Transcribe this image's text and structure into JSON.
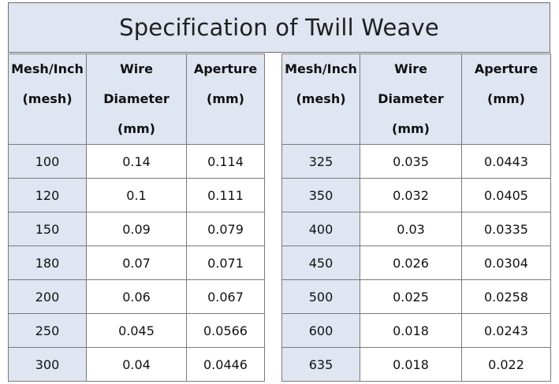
{
  "title": "Specification of Twill Weave",
  "headers": {
    "mesh": [
      "Mesh/Inch",
      "(mesh)"
    ],
    "wire": [
      "Wire",
      "Diameter",
      "(mm)"
    ],
    "aperture": [
      "Aperture",
      "(mm)"
    ]
  },
  "rows": [
    {
      "left": [
        "100",
        "0.14",
        "0.114"
      ],
      "right": [
        "325",
        "0.035",
        "0.0443"
      ]
    },
    {
      "left": [
        "120",
        "0.1",
        "0.111"
      ],
      "right": [
        "350",
        "0.032",
        "0.0405"
      ]
    },
    {
      "left": [
        "150",
        "0.09",
        "0.079"
      ],
      "right": [
        "400",
        "0.03",
        "0.0335"
      ]
    },
    {
      "left": [
        "180",
        "0.07",
        "0.071"
      ],
      "right": [
        "450",
        "0.026",
        "0.0304"
      ]
    },
    {
      "left": [
        "200",
        "0.06",
        "0.067"
      ],
      "right": [
        "500",
        "0.025",
        "0.0258"
      ]
    },
    {
      "left": [
        "250",
        "0.045",
        "0.0566"
      ],
      "right": [
        "600",
        "0.018",
        "0.0243"
      ]
    },
    {
      "left": [
        "300",
        "0.04",
        "0.0446"
      ],
      "right": [
        "635",
        "0.018",
        "0.022"
      ]
    }
  ]
}
